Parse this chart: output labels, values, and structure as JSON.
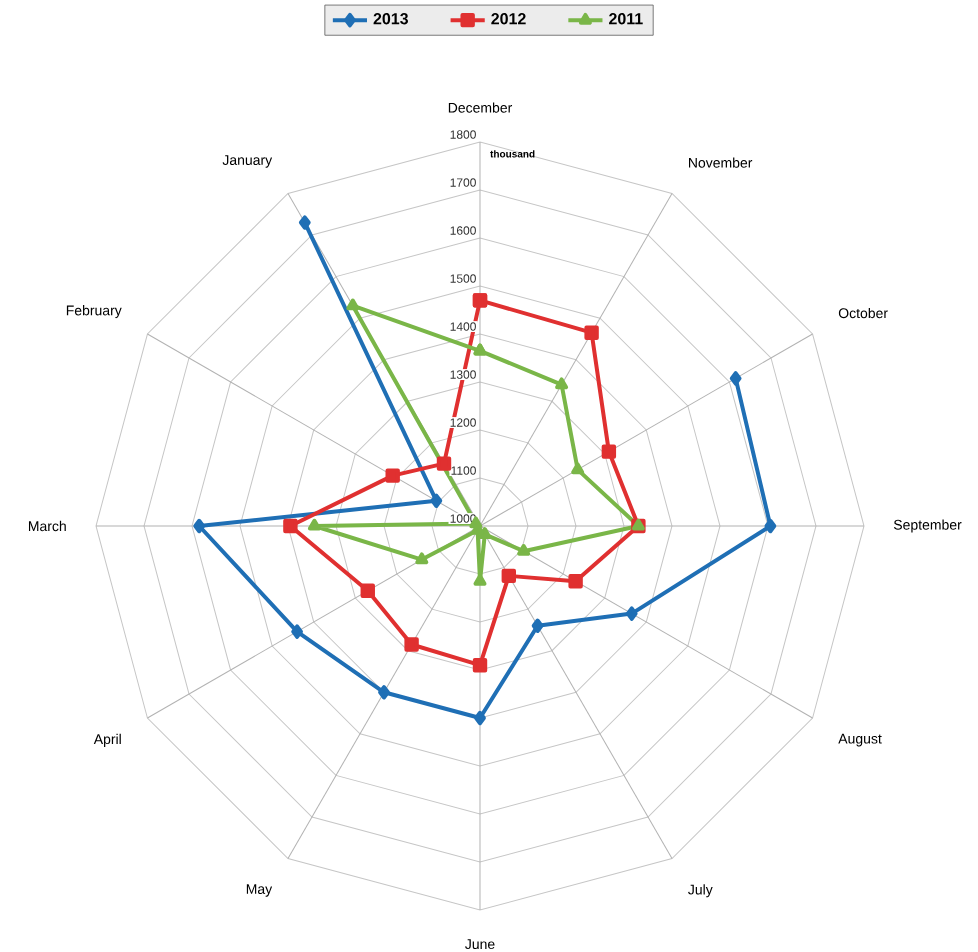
{
  "chart_data": {
    "type": "radar",
    "categories": [
      "December",
      "November",
      "October",
      "September",
      "August",
      "July",
      "June",
      "May",
      "April",
      "March",
      "February",
      "January"
    ],
    "series": [
      {
        "name": "2013",
        "color": "#1f6fb5",
        "marker": "diamond",
        "values": [
          null,
          null,
          1615,
          1605,
          1365,
          1240,
          1400,
          1400,
          1440,
          1585,
          1105,
          1730
        ]
      },
      {
        "name": "2012",
        "color": "#e03030",
        "marker": "square",
        "values": [
          1470,
          1465,
          1310,
          1330,
          1230,
          1120,
          1290,
          1285,
          1270,
          1395,
          1210,
          1150
        ]
      },
      {
        "name": "2011",
        "color": "#7ab648",
        "marker": "triangle",
        "values": [
          1365,
          1340,
          1235,
          1330,
          1105,
          1020,
          1115,
          1010,
          1140,
          1345,
          1010,
          1530
        ]
      }
    ],
    "ylim": [
      1000,
      1800
    ],
    "yticks": [
      1000,
      1100,
      1200,
      1300,
      1400,
      1500,
      1600,
      1700,
      1800
    ],
    "grid": true,
    "legend": "top",
    "annotations": [
      "thousand"
    ]
  }
}
